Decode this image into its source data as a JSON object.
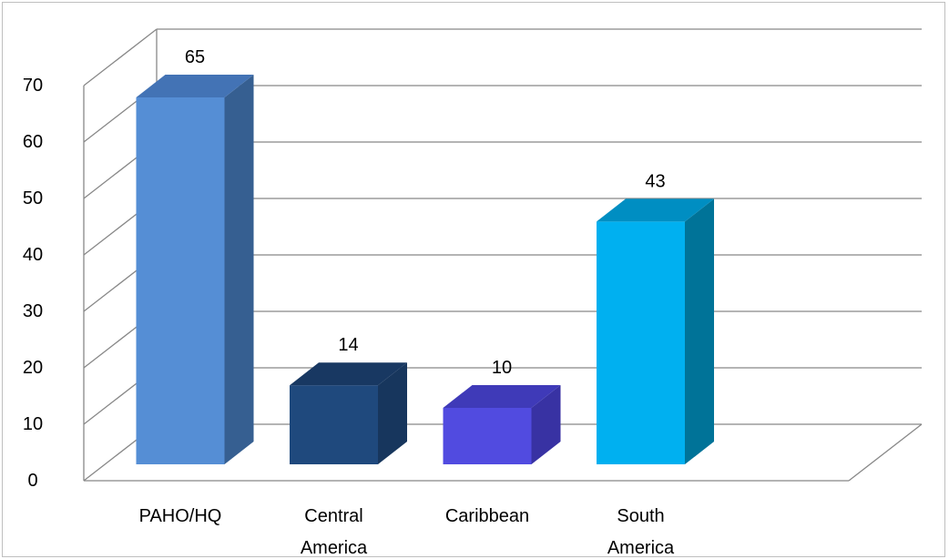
{
  "chart_data": {
    "type": "bar",
    "style": "3d-column",
    "categories": [
      "PAHO/HQ",
      "Central America",
      "Caribbean",
      "South America"
    ],
    "category_lines": [
      [
        "PAHO/HQ"
      ],
      [
        "Central",
        "America"
      ],
      [
        "Caribbean"
      ],
      [
        "South",
        "America"
      ]
    ],
    "values": [
      65,
      14,
      10,
      43
    ],
    "ylim": [
      0,
      70
    ],
    "yticks": [
      0,
      10,
      20,
      30,
      40,
      50,
      60,
      70
    ],
    "grid": true,
    "legend": "none",
    "colors": {
      "front": [
        "#558ed5",
        "#1f497d",
        "#514be0",
        "#00b0f0"
      ],
      "side": [
        "#365f91",
        "#17365d",
        "#3832a3",
        "#007398"
      ],
      "top": [
        "#4373b5",
        "#183862",
        "#3f3ab8",
        "#008ec2"
      ],
      "grid": "#888888",
      "frame": "#bfbfbf"
    }
  }
}
